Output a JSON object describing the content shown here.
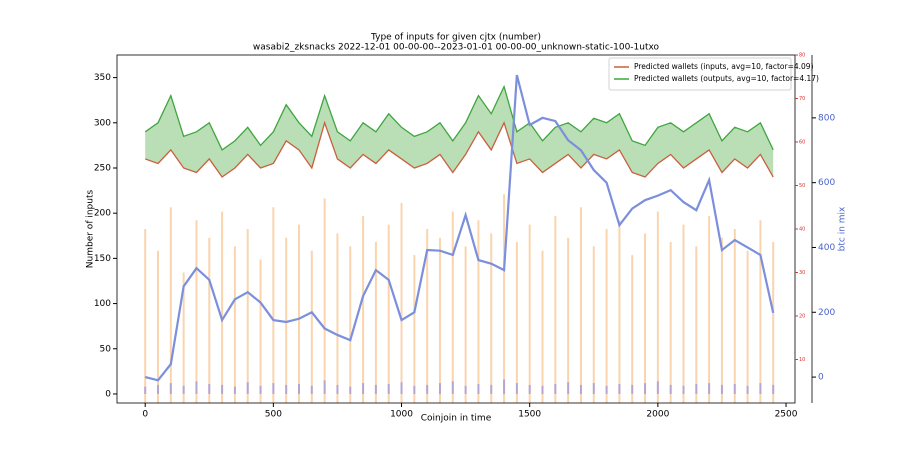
{
  "chart_data": {
    "type": "line",
    "title": "Type of inputs for given cjtx (number)",
    "subtitle": "wasabi2_zksnacks 2022-12-01 00-00-00--2023-01-01 00-00-00_unknown-static-100-1utxo",
    "x_label": "Coinjoin in time",
    "y_label": "Number of inputs",
    "y2_label": "btc in mix",
    "xlim": [
      -110,
      2535
    ],
    "xticks": [
      0,
      500,
      1000,
      1500,
      2000,
      2500
    ],
    "ylim": [
      -10,
      375
    ],
    "yticks": [
      0,
      50,
      100,
      150,
      200,
      250,
      300,
      350
    ],
    "y2lim": [
      -80,
      994
    ],
    "y2ticks": [
      0,
      200,
      400,
      600,
      800
    ],
    "y3lim": [
      0,
      80
    ],
    "y3ticks": [
      10,
      20,
      30,
      40,
      50,
      60,
      70,
      80
    ],
    "legend": "upper right",
    "x": [
      0,
      50,
      100,
      150,
      200,
      250,
      300,
      350,
      400,
      450,
      500,
      550,
      600,
      650,
      700,
      750,
      800,
      850,
      900,
      950,
      1000,
      1050,
      1100,
      1150,
      1200,
      1250,
      1300,
      1350,
      1400,
      1450,
      1500,
      1550,
      1600,
      1650,
      1700,
      1750,
      1800,
      1850,
      1900,
      1950,
      2000,
      2050,
      2100,
      2150,
      2200,
      2250,
      2300,
      2350,
      2400,
      2450
    ],
    "series": [
      {
        "color": "#f5b26b",
        "kind": "bars",
        "axis": "y3",
        "values": [
          40,
          35,
          45,
          30,
          42,
          38,
          44,
          36,
          40,
          33,
          45,
          38,
          41,
          35,
          47,
          39,
          36,
          43,
          37,
          41,
          46,
          34,
          40,
          38,
          44,
          36,
          42,
          39,
          48,
          37,
          41,
          35,
          43,
          38,
          45,
          36,
          40,
          42,
          34,
          39,
          44,
          37,
          41,
          36,
          43,
          38,
          40,
          35,
          42,
          37
        ]
      },
      {
        "color": "#7f7ff0",
        "kind": "bars",
        "values": [
          8,
          10,
          12,
          9,
          14,
          11,
          10,
          8,
          13,
          9,
          12,
          10,
          11,
          9,
          15,
          10,
          8,
          12,
          10,
          11,
          13,
          9,
          10,
          12,
          14,
          9,
          11,
          10,
          16,
          12,
          10,
          9,
          11,
          13,
          10,
          12,
          9,
          11,
          10,
          12,
          14,
          10,
          9,
          11,
          12,
          10,
          11,
          9,
          12,
          10
        ]
      },
      {
        "name": "Predicted wallets (inputs, avg=10, factor=4.09)",
        "color": "#c8603f",
        "values": [
          260,
          255,
          270,
          250,
          245,
          260,
          240,
          250,
          265,
          250,
          255,
          280,
          270,
          250,
          300,
          260,
          250,
          265,
          255,
          270,
          260,
          250,
          255,
          265,
          245,
          265,
          290,
          270,
          300,
          255,
          260,
          245,
          255,
          265,
          250,
          265,
          260,
          270,
          245,
          240,
          255,
          265,
          250,
          260,
          270,
          245,
          260,
          250,
          265,
          240
        ]
      },
      {
        "name": "Predicted wallets (outputs, avg=10, factor=4.17)",
        "color": "#3fa63f",
        "fill_between": "#a9d6a4",
        "values": [
          290,
          300,
          330,
          285,
          290,
          300,
          270,
          280,
          295,
          275,
          290,
          320,
          300,
          285,
          330,
          290,
          280,
          300,
          290,
          310,
          295,
          285,
          290,
          300,
          280,
          300,
          330,
          310,
          340,
          290,
          300,
          280,
          295,
          300,
          290,
          305,
          300,
          310,
          280,
          275,
          295,
          300,
          290,
          300,
          310,
          280,
          295,
          290,
          300,
          270
        ]
      },
      {
        "color": "#7b8fdc",
        "axis": "y2",
        "values": [
          0,
          -10,
          40,
          280,
          336,
          300,
          176,
          240,
          262,
          230,
          176,
          170,
          180,
          200,
          150,
          130,
          114,
          250,
          330,
          300,
          176,
          200,
          392,
          390,
          377,
          500,
          361,
          350,
          330,
          932,
          778,
          800,
          790,
          731,
          700,
          639,
          600,
          469,
          520,
          546,
          560,
          577,
          540,
          515,
          608,
          392,
          423,
          400,
          377,
          198
        ]
      }
    ]
  }
}
